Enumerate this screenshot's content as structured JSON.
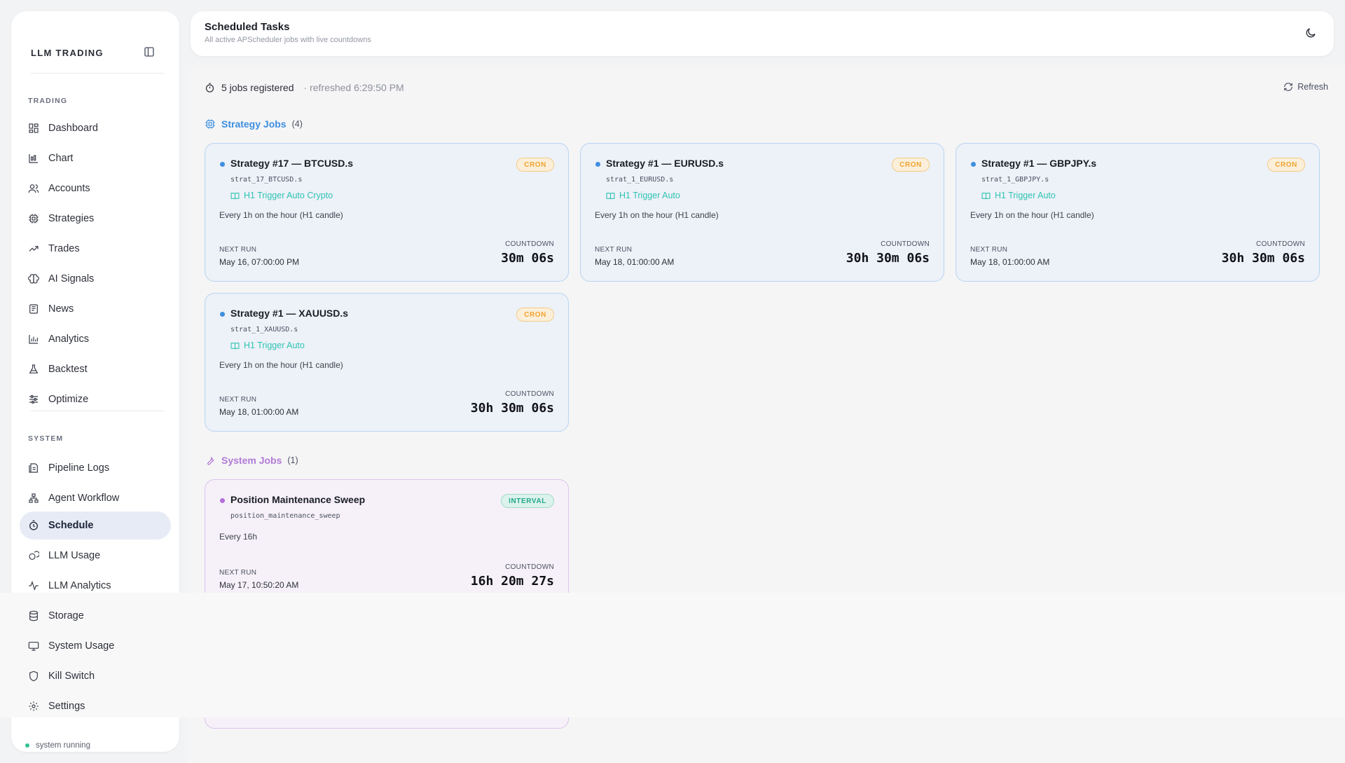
{
  "sidebar": {
    "brand": "LLM TRADING",
    "sections": {
      "trading": "TRADING",
      "system": "SYSTEM"
    },
    "items": [
      {
        "label": "Dashboard",
        "icon": "dashboard-icon"
      },
      {
        "label": "Chart",
        "icon": "chart-icon"
      },
      {
        "label": "Accounts",
        "icon": "users-icon"
      },
      {
        "label": "Strategies",
        "icon": "cpu-icon"
      },
      {
        "label": "Trades",
        "icon": "trend-icon"
      },
      {
        "label": "AI Signals",
        "icon": "brain-icon"
      },
      {
        "label": "News",
        "icon": "newspaper-icon"
      },
      {
        "label": "Analytics",
        "icon": "bar-chart-icon"
      },
      {
        "label": "Backtest",
        "icon": "flask-icon"
      },
      {
        "label": "Optimize",
        "icon": "sliders-icon"
      },
      {
        "label": "Pipeline Logs",
        "icon": "logs-icon"
      },
      {
        "label": "Agent Workflow",
        "icon": "workflow-icon"
      },
      {
        "label": "Schedule",
        "icon": "timer-icon",
        "active": true
      },
      {
        "label": "LLM Usage",
        "icon": "coins-icon"
      },
      {
        "label": "LLM Analytics",
        "icon": "activity-icon"
      },
      {
        "label": "Storage",
        "icon": "database-icon"
      },
      {
        "label": "System Usage",
        "icon": "monitor-icon"
      },
      {
        "label": "Kill Switch",
        "icon": "shield-icon"
      },
      {
        "label": "Settings",
        "icon": "gear-icon"
      }
    ],
    "status": "system running"
  },
  "header": {
    "title": "Scheduled Tasks",
    "subtitle": "All active APScheduler jobs with live countdowns"
  },
  "summary": {
    "jobs": "5 jobs registered",
    "refreshed": "· refreshed 6:29:50 PM",
    "refresh_label": "Refresh"
  },
  "groups": {
    "strategy": {
      "title": "Strategy Jobs",
      "count": "(4)"
    },
    "system": {
      "title": "System Jobs",
      "count": "(1)"
    }
  },
  "strategy_jobs": [
    {
      "name": "Strategy #17 — BTCUSD.s",
      "id": "strat_17_BTCUSD.s",
      "trigger": "H1 Trigger Auto Crypto",
      "schedule": "Every 1h on the hour (H1 candle)",
      "badge": "CRON",
      "next_label": "NEXT RUN",
      "next_run": "May 16, 07:00:00 PM",
      "countdown_label": "COUNTDOWN",
      "countdown": "30m 06s"
    },
    {
      "name": "Strategy #1 — EURUSD.s",
      "id": "strat_1_EURUSD.s",
      "trigger": "H1 Trigger Auto",
      "schedule": "Every 1h on the hour (H1 candle)",
      "badge": "CRON",
      "next_label": "NEXT RUN",
      "next_run": "May 18, 01:00:00 AM",
      "countdown_label": "COUNTDOWN",
      "countdown": "30h 30m 06s"
    },
    {
      "name": "Strategy #1 — GBPJPY.s",
      "id": "strat_1_GBPJPY.s",
      "trigger": "H1 Trigger Auto",
      "schedule": "Every 1h on the hour (H1 candle)",
      "badge": "CRON",
      "next_label": "NEXT RUN",
      "next_run": "May 18, 01:00:00 AM",
      "countdown_label": "COUNTDOWN",
      "countdown": "30h 30m 06s"
    },
    {
      "name": "Strategy #1 — XAUUSD.s",
      "id": "strat_1_XAUUSD.s",
      "trigger": "H1 Trigger Auto",
      "schedule": "Every 1h on the hour (H1 candle)",
      "badge": "CRON",
      "next_label": "NEXT RUN",
      "next_run": "May 18, 01:00:00 AM",
      "countdown_label": "COUNTDOWN",
      "countdown": "30h 30m 06s"
    }
  ],
  "system_jobs": [
    {
      "name": "Position Maintenance Sweep",
      "id": "position_maintenance_sweep",
      "schedule": "Every 16h",
      "badge": "INTERVAL",
      "next_label": "NEXT RUN",
      "next_run": "May 17, 10:50:20 AM",
      "countdown_label": "COUNTDOWN",
      "countdown": "16h 20m 27s"
    }
  ],
  "colors": {
    "strategy_accent": "#3e8fe0",
    "system_accent": "#b17ad6",
    "trigger": "#2fc3b2",
    "cron_badge": "#f0a432",
    "interval_badge": "#24a88a",
    "status_running": "#34c38f"
  }
}
